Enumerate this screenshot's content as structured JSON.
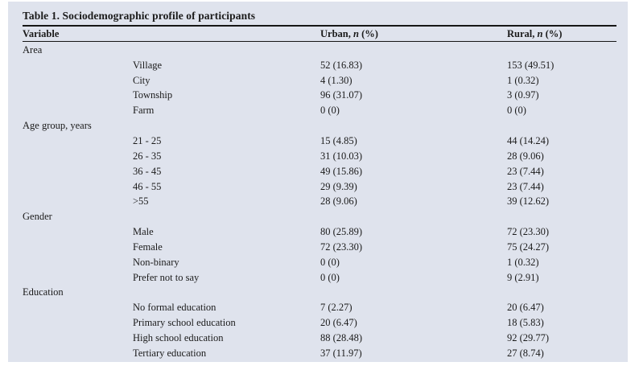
{
  "table": {
    "title": "Table 1. Sociodemographic profile of participants",
    "header": {
      "variable": "Variable",
      "urban": {
        "pre": "Urban, ",
        "n": "n",
        "post": " (%)"
      },
      "rural": {
        "pre": "Rural, ",
        "n": "n",
        "post": " (%)"
      }
    },
    "sections": [
      {
        "name": "Area",
        "rows": [
          [
            "Village",
            "52 (16.83)",
            "153 (49.51)"
          ],
          [
            "City",
            "4 (1.30)",
            "1 (0.32)"
          ],
          [
            "Township",
            "96 (31.07)",
            "3 (0.97)"
          ],
          [
            "Farm",
            "0 (0)",
            "0 (0)"
          ]
        ]
      },
      {
        "name": "Age group, years",
        "rows": [
          [
            "21 - 25",
            "15 (4.85)",
            "44 (14.24)"
          ],
          [
            "26 - 35",
            "31 (10.03)",
            "28 (9.06)"
          ],
          [
            "36 - 45",
            "49 (15.86)",
            "23 (7.44)"
          ],
          [
            "46 - 55",
            "29 (9.39)",
            "23 (7.44)"
          ],
          [
            ">55",
            "28 (9.06)",
            "39 (12.62)"
          ]
        ]
      },
      {
        "name": "Gender",
        "rows": [
          [
            "Male",
            "80 (25.89)",
            "72 (23.30)"
          ],
          [
            "Female",
            "72 (23.30)",
            "75 (24.27)"
          ],
          [
            "Non-binary",
            "0 (0)",
            "1 (0.32)"
          ],
          [
            "Prefer not to say",
            "0 (0)",
            "9 (2.91)"
          ]
        ]
      },
      {
        "name": "Education",
        "rows": [
          [
            "No formal education",
            "7 (2.27)",
            "20 (6.47)"
          ],
          [
            "Primary school education",
            "20 (6.47)",
            "18 (5.83)"
          ],
          [
            "High school education",
            "88 (28.48)",
            "92 (29.77)"
          ],
          [
            "Tertiary education",
            "37 (11.97)",
            "27 (8.74)"
          ]
        ]
      }
    ]
  }
}
